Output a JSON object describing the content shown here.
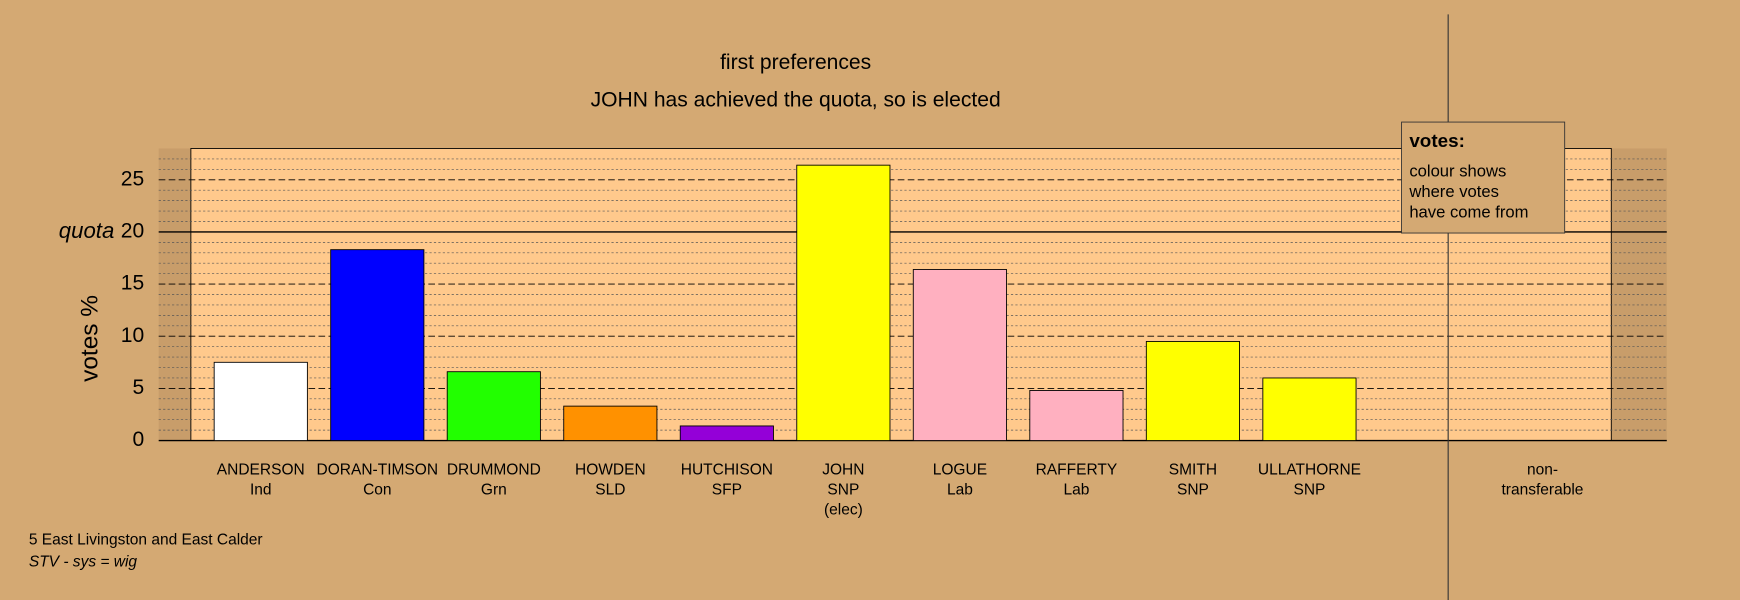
{
  "chart_data": {
    "type": "bar",
    "title": "first preferences",
    "subtitle": "JOHN has achieved the quota, so is elected",
    "y_label": "votes %",
    "categories": [
      [
        "ANDERSON",
        "Ind"
      ],
      [
        "DORAN-TIMSON",
        "Con"
      ],
      [
        "DRUMMOND",
        "Grn"
      ],
      [
        "HOWDEN",
        "SLD"
      ],
      [
        "HUTCHISON",
        "SFP"
      ],
      [
        "JOHN",
        "SNP",
        "(elec)"
      ],
      [
        "LOGUE",
        "Lab"
      ],
      [
        "RAFFERTY",
        "Lab"
      ],
      [
        "SMITH",
        "SNP"
      ],
      [
        "ULLATHORNE",
        "SNP"
      ],
      [
        "non-",
        "transferable"
      ]
    ],
    "values": [
      7.5,
      18.3,
      6.6,
      3.3,
      1.4,
      26.4,
      16.4,
      4.8,
      9.5,
      6.0,
      null
    ],
    "colors": [
      "#ffffff",
      "#0000ff",
      "#22ff00",
      "#ff9100",
      "#9400d8",
      "#ffff00",
      "#ffb0c0",
      "#ffb0c0",
      "#ffff00",
      "#ffff00",
      null
    ],
    "ylim": [
      0,
      28
    ],
    "yticks": [
      0,
      5,
      10,
      15,
      20,
      25
    ],
    "yminorticks": [
      1,
      2,
      3,
      4,
      6,
      7,
      8,
      9,
      11,
      12,
      13,
      14,
      16,
      17,
      18,
      19,
      21,
      22,
      23,
      24,
      26,
      27
    ],
    "quota": {
      "value": 20,
      "label": "quota"
    },
    "legend": {
      "title": "votes:",
      "lines": [
        "colour shows",
        "where votes",
        "have come from"
      ]
    },
    "footer": [
      "5 East Livingston and East Calder",
      "STV - sys = wig"
    ],
    "grid": true
  }
}
